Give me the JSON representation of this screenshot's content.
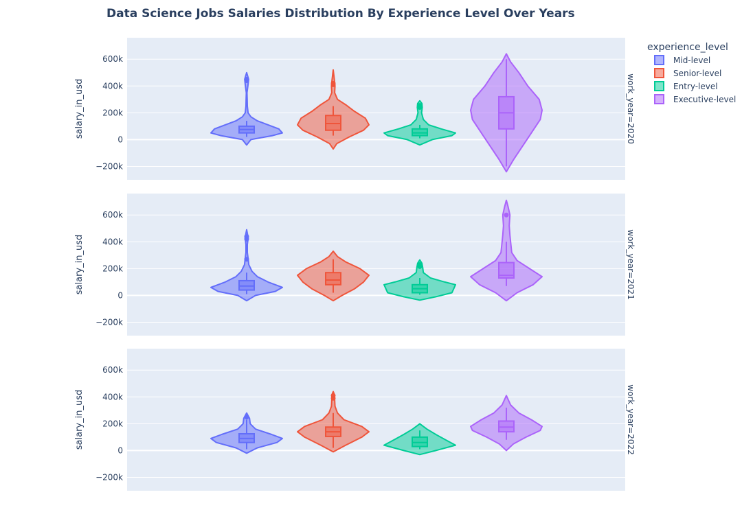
{
  "chart_data": {
    "type": "violin",
    "title": "Data Science Jobs Salaries Distribution By Experience Level Over Years",
    "ylabel": "salary_in_usd",
    "ylim": [
      -300000,
      760000
    ],
    "yticks": [
      {
        "value": 600000,
        "label": "600k"
      },
      {
        "value": 400000,
        "label": "400k"
      },
      {
        "value": 200000,
        "label": "200k"
      },
      {
        "value": 0,
        "label": "0"
      },
      {
        "value": -200000,
        "label": "−200k"
      }
    ],
    "legend": {
      "title": "experience_level",
      "position": "top-right",
      "items": [
        {
          "label": " Mid-level",
          "color": "#636efa"
        },
        {
          "label": "Senior-level",
          "color": "#ef553b"
        },
        {
          "label": "Entry-level",
          "color": "#00cc96"
        },
        {
          "label": "Executive-level",
          "color": "#ab63fa"
        }
      ]
    },
    "facets": [
      {
        "label": "work_year=2020",
        "series": [
          {
            "name": " Mid-level",
            "color": "#636efa",
            "min": 20000,
            "q1": 50000,
            "median": 75000,
            "q3": 100000,
            "max": 140000,
            "outliers": [
              440000,
              450000
            ],
            "kde_low": -40000,
            "kde_high": 500000,
            "profile": [
              [
                -40000,
                0
              ],
              [
                0,
                0.12
              ],
              [
                30000,
                0.72
              ],
              [
                50000,
                1
              ],
              [
                80000,
                0.9
              ],
              [
                110000,
                0.6
              ],
              [
                140000,
                0.3
              ],
              [
                170000,
                0.12
              ],
              [
                200000,
                0.04
              ],
              [
                250000,
                0.02
              ],
              [
                300000,
                0.015
              ],
              [
                350000,
                0.01
              ],
              [
                400000,
                0.035
              ],
              [
                450000,
                0.055
              ],
              [
                500000,
                0
              ]
            ]
          },
          {
            "name": "Senior-level",
            "color": "#ef553b",
            "min": 30000,
            "q1": 70000,
            "median": 120000,
            "q3": 180000,
            "max": 250000,
            "outliers": [
              410000,
              420000
            ],
            "kde_low": -70000,
            "kde_high": 520000,
            "profile": [
              [
                -70000,
                0
              ],
              [
                -30000,
                0.1
              ],
              [
                20000,
                0.45
              ],
              [
                70000,
                0.85
              ],
              [
                110000,
                1
              ],
              [
                160000,
                0.9
              ],
              [
                210000,
                0.6
              ],
              [
                260000,
                0.35
              ],
              [
                300000,
                0.12
              ],
              [
                350000,
                0.04
              ],
              [
                400000,
                0.05
              ],
              [
                450000,
                0.03
              ],
              [
                520000,
                0
              ]
            ]
          },
          {
            "name": "Entry-level",
            "color": "#00cc96",
            "min": 10000,
            "q1": 30000,
            "median": 50000,
            "q3": 80000,
            "max": 110000,
            "outliers": [
              240000,
              255000
            ],
            "kde_low": -40000,
            "kde_high": 290000,
            "profile": [
              [
                -40000,
                0
              ],
              [
                0,
                0.35
              ],
              [
                30000,
                0.9
              ],
              [
                50000,
                1
              ],
              [
                80000,
                0.6
              ],
              [
                110000,
                0.25
              ],
              [
                150000,
                0.1
              ],
              [
                200000,
                0.05
              ],
              [
                240000,
                0.07
              ],
              [
                270000,
                0.06
              ],
              [
                290000,
                0
              ]
            ]
          },
          {
            "name": "Executive-level",
            "color": "#ab63fa",
            "min": -200000,
            "q1": 80000,
            "median": 200000,
            "q3": 320000,
            "max": 600000,
            "outliers": [],
            "kde_low": -240000,
            "kde_high": 640000,
            "profile": [
              [
                -240000,
                0
              ],
              [
                -150000,
                0.2
              ],
              [
                -50000,
                0.45
              ],
              [
                50000,
                0.7
              ],
              [
                150000,
                0.95
              ],
              [
                220000,
                1
              ],
              [
                300000,
                0.92
              ],
              [
                400000,
                0.6
              ],
              [
                500000,
                0.35
              ],
              [
                580000,
                0.12
              ],
              [
                640000,
                0
              ]
            ]
          }
        ]
      },
      {
        "label": "work_year=2021",
        "series": [
          {
            "name": " Mid-level",
            "color": "#636efa",
            "min": 10000,
            "q1": 40000,
            "median": 70000,
            "q3": 110000,
            "max": 170000,
            "outliers": [
              270000,
              420000,
              440000
            ],
            "kde_low": -40000,
            "kde_high": 490000,
            "profile": [
              [
                -40000,
                0
              ],
              [
                0,
                0.25
              ],
              [
                30000,
                0.8
              ],
              [
                60000,
                1
              ],
              [
                100000,
                0.6
              ],
              [
                140000,
                0.3
              ],
              [
                180000,
                0.15
              ],
              [
                230000,
                0.06
              ],
              [
                270000,
                0.045
              ],
              [
                320000,
                0.02
              ],
              [
                380000,
                0.02
              ],
              [
                430000,
                0.045
              ],
              [
                490000,
                0
              ]
            ]
          },
          {
            "name": "Senior-level",
            "color": "#ef553b",
            "min": 20000,
            "q1": 80000,
            "median": 115000,
            "q3": 170000,
            "max": 270000,
            "outliers": [],
            "kde_low": -40000,
            "kde_high": 330000,
            "profile": [
              [
                -40000,
                0
              ],
              [
                0,
                0.25
              ],
              [
                50000,
                0.6
              ],
              [
                100000,
                0.85
              ],
              [
                150000,
                1
              ],
              [
                200000,
                0.75
              ],
              [
                250000,
                0.35
              ],
              [
                290000,
                0.12
              ],
              [
                330000,
                0
              ]
            ]
          },
          {
            "name": "Entry-level",
            "color": "#00cc96",
            "min": 5000,
            "q1": 20000,
            "median": 50000,
            "q3": 80000,
            "max": 130000,
            "outliers": [
              215000,
              230000
            ],
            "kde_low": -35000,
            "kde_high": 265000,
            "profile": [
              [
                -35000,
                0
              ],
              [
                -10000,
                0.45
              ],
              [
                20000,
                0.9
              ],
              [
                50000,
                0.95
              ],
              [
                80000,
                1
              ],
              [
                100000,
                0.7
              ],
              [
                130000,
                0.3
              ],
              [
                170000,
                0.1
              ],
              [
                210000,
                0.08
              ],
              [
                240000,
                0.06
              ],
              [
                265000,
                0
              ]
            ]
          },
          {
            "name": "Executive-level",
            "color": "#ab63fa",
            "min": 70000,
            "q1": 130000,
            "median": 150000,
            "q3": 245000,
            "max": 400000,
            "outliers": [
              600000
            ],
            "kde_low": -40000,
            "kde_high": 710000,
            "profile": [
              [
                -40000,
                0
              ],
              [
                20000,
                0.3
              ],
              [
                80000,
                0.75
              ],
              [
                140000,
                1
              ],
              [
                200000,
                0.65
              ],
              [
                260000,
                0.3
              ],
              [
                320000,
                0.15
              ],
              [
                400000,
                0.12
              ],
              [
                450000,
                0.1
              ],
              [
                520000,
                0.08
              ],
              [
                600000,
                0.1
              ],
              [
                660000,
                0.05
              ],
              [
                710000,
                0
              ]
            ]
          }
        ]
      },
      {
        "label": "work_year=2022",
        "series": [
          {
            "name": " Mid-level",
            "color": "#636efa",
            "min": 10000,
            "q1": 60000,
            "median": 90000,
            "q3": 125000,
            "max": 230000,
            "outliers": [
              250000
            ],
            "kde_low": -20000,
            "kde_high": 280000,
            "profile": [
              [
                -20000,
                0
              ],
              [
                20000,
                0.3
              ],
              [
                60000,
                0.85
              ],
              [
                90000,
                1
              ],
              [
                120000,
                0.7
              ],
              [
                160000,
                0.25
              ],
              [
                200000,
                0.1
              ],
              [
                240000,
                0.08
              ],
              [
                280000,
                0
              ]
            ]
          },
          {
            "name": "Senior-level",
            "color": "#ef553b",
            "min": 20000,
            "q1": 105000,
            "median": 140000,
            "q3": 175000,
            "max": 280000,
            "outliers": [
              390000,
              410000
            ],
            "kde_low": -10000,
            "kde_high": 440000,
            "profile": [
              [
                -10000,
                0
              ],
              [
                40000,
                0.35
              ],
              [
                100000,
                0.8
              ],
              [
                140000,
                1
              ],
              [
                180000,
                0.8
              ],
              [
                230000,
                0.3
              ],
              [
                280000,
                0.12
              ],
              [
                330000,
                0.05
              ],
              [
                380000,
                0.04
              ],
              [
                420000,
                0.03
              ],
              [
                440000,
                0
              ]
            ]
          },
          {
            "name": "Entry-level",
            "color": "#00cc96",
            "min": 10000,
            "q1": 30000,
            "median": 60000,
            "q3": 100000,
            "max": 150000,
            "outliers": [],
            "kde_low": -30000,
            "kde_high": 200000,
            "profile": [
              [
                -30000,
                0
              ],
              [
                0,
                0.45
              ],
              [
                40000,
                1
              ],
              [
                80000,
                0.72
              ],
              [
                120000,
                0.45
              ],
              [
                160000,
                0.2
              ],
              [
                200000,
                0
              ]
            ]
          },
          {
            "name": "Executive-level",
            "color": "#ab63fa",
            "min": 80000,
            "q1": 140000,
            "median": 175000,
            "q3": 220000,
            "max": 320000,
            "outliers": [],
            "kde_low": 0,
            "kde_high": 410000,
            "profile": [
              [
                0,
                0
              ],
              [
                50000,
                0.2
              ],
              [
                100000,
                0.55
              ],
              [
                150000,
                0.95
              ],
              [
                180000,
                1
              ],
              [
                230000,
                0.7
              ],
              [
                280000,
                0.35
              ],
              [
                340000,
                0.12
              ],
              [
                410000,
                0
              ]
            ]
          }
        ]
      }
    ]
  }
}
